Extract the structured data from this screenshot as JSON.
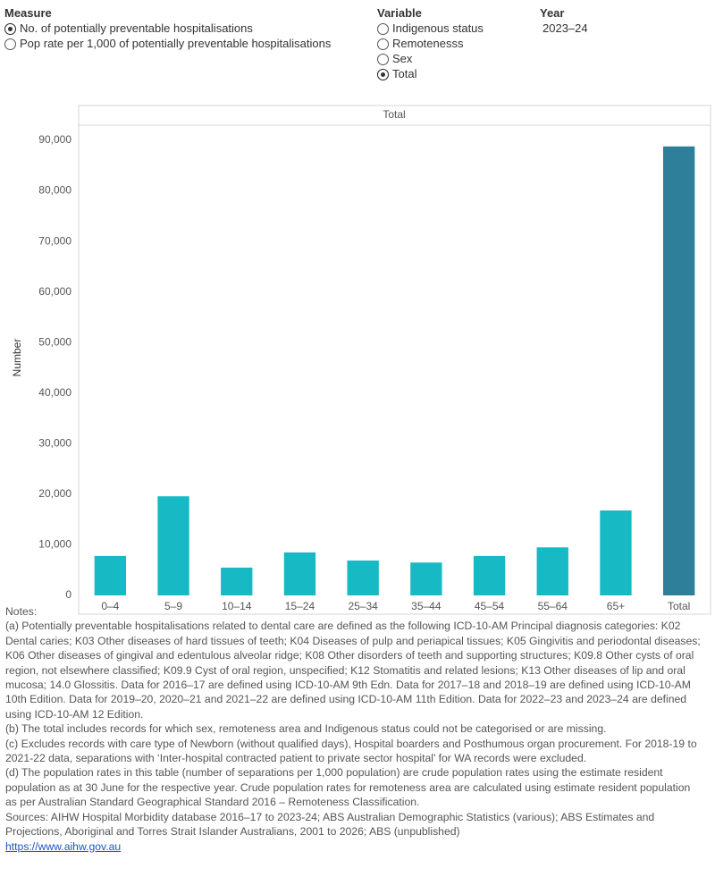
{
  "controls": {
    "measure": {
      "title": "Measure",
      "options": [
        "No. of potentially preventable hospitalisations",
        "Pop rate per 1,000 of potentially preventable hospitalisations"
      ],
      "selected": 0
    },
    "variable": {
      "title": "Variable",
      "options": [
        "Indigenous status",
        "Remotenesss",
        "Sex",
        "Total"
      ],
      "selected": 3
    },
    "year": {
      "title": "Year",
      "value": "2023–24"
    }
  },
  "chart_data": {
    "type": "bar",
    "panel_title": "Total",
    "y_label": "Number",
    "categories": [
      "0–4",
      "5–9",
      "10–14",
      "15–24",
      "25–34",
      "35–44",
      "45–54",
      "55–64",
      "65+",
      "Total"
    ],
    "values": [
      7800,
      19600,
      5500,
      8500,
      6900,
      6500,
      7800,
      9500,
      16800,
      88800
    ],
    "colors": [
      "#17b9c4",
      "#17b9c4",
      "#17b9c4",
      "#17b9c4",
      "#17b9c4",
      "#17b9c4",
      "#17b9c4",
      "#17b9c4",
      "#17b9c4",
      "#2e7f99"
    ],
    "ylim": [
      0,
      90000
    ],
    "yticks": [
      0,
      {
        "value": 10000,
        "label": "10,000"
      },
      {
        "value": 20000,
        "label": "20,000"
      },
      {
        "value": 30000,
        "label": "30,000"
      },
      {
        "value": 40000,
        "label": "40,000"
      },
      {
        "value": 50000,
        "label": "50,000"
      },
      {
        "value": 60000,
        "label": "60,000"
      },
      {
        "value": 70000,
        "label": "70,000"
      },
      {
        "value": 80000,
        "label": "80,000"
      },
      {
        "value": 90000,
        "label": "90,000"
      }
    ],
    "grid": false
  },
  "notes": {
    "heading": "Notes:",
    "items": [
      "(a) Potentially preventable hospitalisations related to dental care are defined as the following ICD-10-AM Principal diagnosis categories: K02 Dental caries; K03 Other diseases of hard tissues of teeth; K04 Diseases of pulp and periapical tissues; K05 Gingivitis and periodontal diseases; K06 Other diseases of gingival and edentulous alveolar ridge; K08 Other disorders of teeth and supporting structures; K09.8 Other cysts of oral region, not elsewhere classified; K09.9 Cyst of oral region, unspecified; K12 Stomatitis and related lesions; K13 Other diseases of lip and oral mucosa; 14.0 Glossitis. Data for 2016–17 are defined using ICD-10-AM 9th Edn. Data for 2017–18 and 2018–19 are defined using ICD-10-AM 10th Edition. Data for 2019–20, 2020–21 and 2021–22 are defined using ICD-10-AM 11th Edition. Data for 2022–23 and 2023–24 are defined using ICD-10-AM 12 Edition.",
      "(b) The total includes records for which sex, remoteness area and Indigenous status could not be categorised or are missing.",
      "(c) Excludes records with care type of Newborn (without qualified days), Hospital boarders and Posthumous organ procurement. For 2018-19 to 2021-22 data, separations with ‘Inter-hospital contracted patient to private sector hospital’ for WA records were excluded.",
      "(d) The population rates in this table (number of separations per 1,000 population) are crude population rates using the estimate resident population as at 30 June for the respective year. Crude population rates for remoteness area are calculated using estimate resident population as per Australian Standard Geographical Standard 2016 –  Remoteness Classification.",
      "Sources: AIHW Hospital Morbidity database 2016–17 to 2023-24; ABS Australian Demographic Statistics (various); ABS Estimates and Projections, Aboriginal and Torres Strait Islander Australians, 2001 to 2026; ABS (unpublished)"
    ],
    "link": "https://www.aihw.gov.au"
  }
}
